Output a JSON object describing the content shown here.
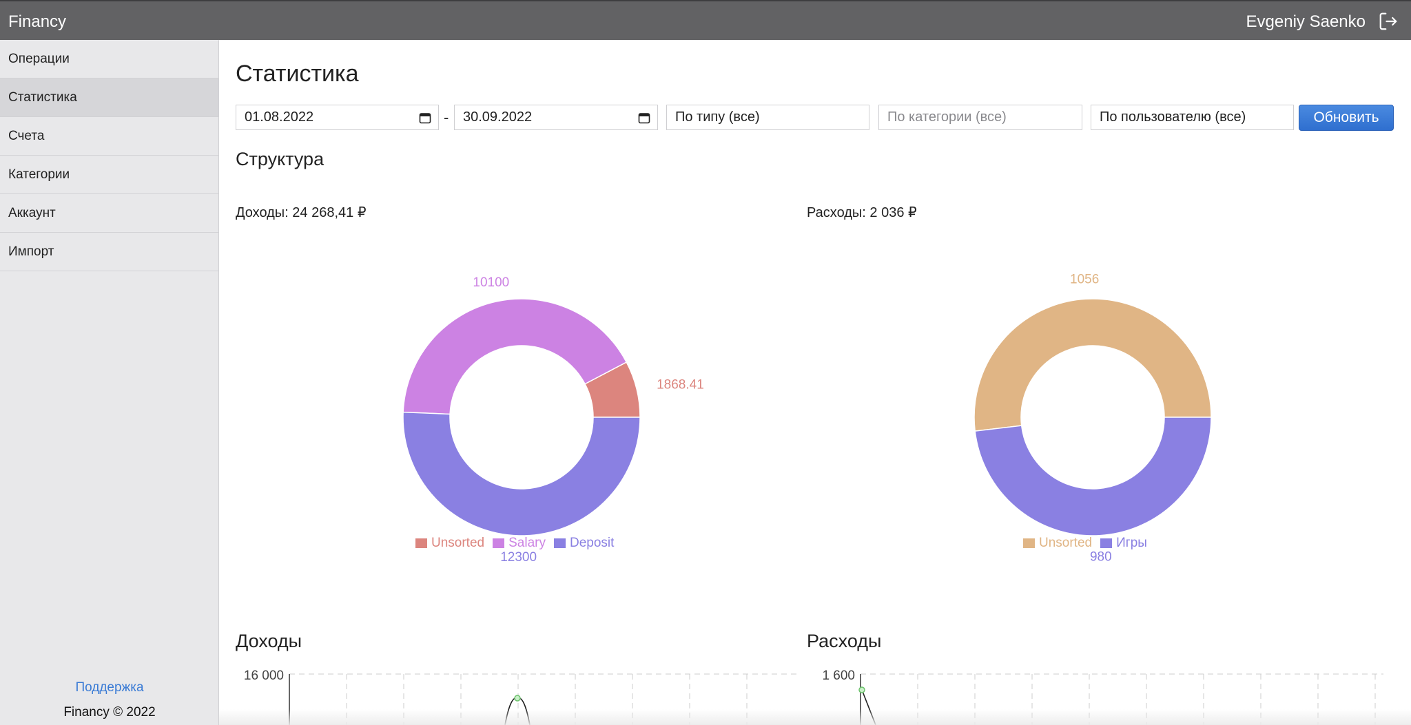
{
  "app": {
    "name": "Financy",
    "user_name": "Evgeniy Saenko",
    "logout_icon": "logout-icon"
  },
  "sidebar": {
    "items": [
      {
        "label": "Операции",
        "active": false
      },
      {
        "label": "Статистика",
        "active": true
      },
      {
        "label": "Счета",
        "active": false
      },
      {
        "label": "Категории",
        "active": false
      },
      {
        "label": "Аккаунт",
        "active": false
      },
      {
        "label": "Импорт",
        "active": false
      }
    ],
    "support_link": "Поддержка",
    "copyright": "Financy © 2022"
  },
  "page": {
    "title": "Статистика",
    "filters": {
      "date_from": "01.08.2022",
      "date_separator": "-",
      "date_to": "30.09.2022",
      "type_value": "По типу (все)",
      "category_placeholder": "По категории (все)",
      "user_value": "По пользователю (все)",
      "refresh_button": "Обновить"
    },
    "structure_title": "Структура",
    "income_total": "Доходы: 24 268,41 ₽",
    "expense_total": "Расходы: 2 036 ₽",
    "income_chart_title": "Доходы",
    "expense_chart_title": "Расходы"
  },
  "colors": {
    "topbar": "#626264",
    "accent": "#3a7bd5",
    "unsorted_income": "#dc857e",
    "salary": "#cc82e3",
    "deposit": "#8a80e2",
    "unsorted_expense": "#e0b585",
    "games": "#8a80e2"
  },
  "chart_data": [
    {
      "type": "pie",
      "variant": "donut",
      "categories": [
        "Unsorted",
        "Salary",
        "Deposit"
      ],
      "values": [
        1868.41,
        10100,
        12300
      ],
      "value_labels": [
        "1868.41",
        "10100",
        "12300"
      ],
      "colors": [
        "#dc857e",
        "#cc82e3",
        "#8a80e2"
      ],
      "legend": "bottom"
    },
    {
      "type": "pie",
      "variant": "donut",
      "categories": [
        "Unsorted",
        "Игры"
      ],
      "values": [
        1056,
        980
      ],
      "value_labels": [
        "1056",
        "980"
      ],
      "colors": [
        "#e0b585",
        "#8a80e2"
      ],
      "legend": "bottom"
    },
    {
      "type": "line",
      "y_tick_labels": [
        "16 000"
      ],
      "ylim_top": 16000,
      "grid": true,
      "partially_visible": true
    },
    {
      "type": "line",
      "y_tick_labels": [
        "1 600"
      ],
      "ylim_top": 1600,
      "grid": true,
      "partially_visible": true
    }
  ]
}
